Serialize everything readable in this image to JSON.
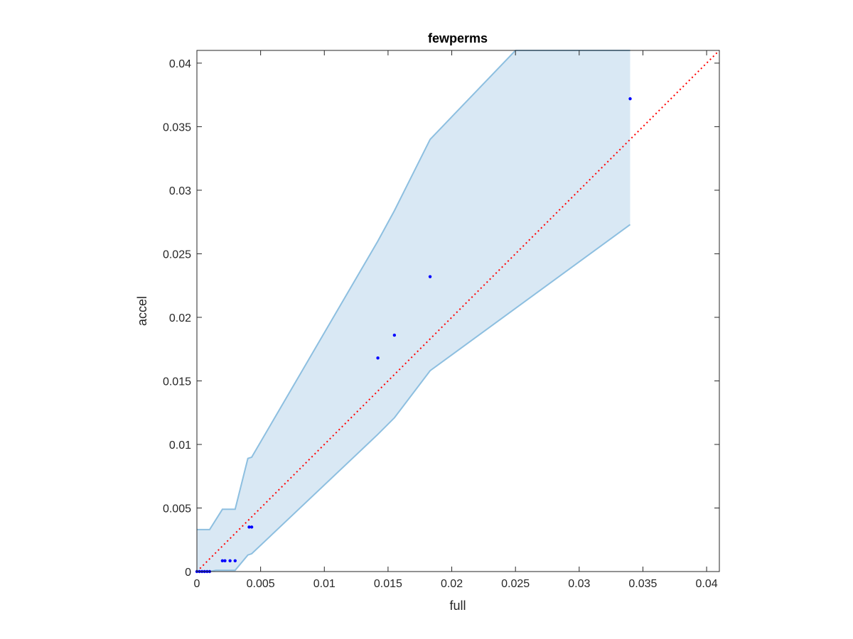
{
  "chart_data": {
    "type": "scatter",
    "title": "fewperms",
    "xlabel": "full",
    "ylabel": "accel",
    "xlim": [
      0,
      0.041
    ],
    "ylim": [
      0,
      0.041
    ],
    "xticks": [
      0,
      0.005,
      0.01,
      0.015,
      0.02,
      0.025,
      0.03,
      0.035,
      0.04
    ],
    "xtick_labels": [
      "0",
      "0.005",
      "0.01",
      "0.015",
      "0.02",
      "0.025",
      "0.03",
      "0.035",
      "0.04"
    ],
    "yticks": [
      0,
      0.005,
      0.01,
      0.015,
      0.02,
      0.025,
      0.03,
      0.035,
      0.04
    ],
    "ytick_labels": [
      "0",
      "0.005",
      "0.01",
      "0.015",
      "0.02",
      "0.025",
      "0.03",
      "0.035",
      "0.04"
    ],
    "grid": false,
    "colors": {
      "points": "#0000ff",
      "band_fill": "#d9e8f4",
      "band_edge": "#8dbfe0",
      "reference_line": "#ff0000",
      "axes": "#262626"
    },
    "points": [
      {
        "x": 0.0,
        "y": 0.0
      },
      {
        "x": 0.0002,
        "y": 0.0
      },
      {
        "x": 0.0004,
        "y": 0.0
      },
      {
        "x": 0.0006,
        "y": 0.0
      },
      {
        "x": 0.0008,
        "y": 0.0
      },
      {
        "x": 0.001,
        "y": 0.0
      },
      {
        "x": 0.002,
        "y": 0.00085
      },
      {
        "x": 0.0022,
        "y": 0.00085
      },
      {
        "x": 0.0026,
        "y": 0.00085
      },
      {
        "x": 0.003,
        "y": 0.00085
      },
      {
        "x": 0.0041,
        "y": 0.0035
      },
      {
        "x": 0.0043,
        "y": 0.0035
      },
      {
        "x": 0.0142,
        "y": 0.0168
      },
      {
        "x": 0.0155,
        "y": 0.0186
      },
      {
        "x": 0.0183,
        "y": 0.0232
      },
      {
        "x": 0.034,
        "y": 0.0372
      }
    ],
    "band_upper": [
      {
        "x": 0.0,
        "y": 0.0033
      },
      {
        "x": 0.001,
        "y": 0.0033
      },
      {
        "x": 0.002,
        "y": 0.0049
      },
      {
        "x": 0.003,
        "y": 0.0049
      },
      {
        "x": 0.004,
        "y": 0.0089
      },
      {
        "x": 0.0043,
        "y": 0.009
      },
      {
        "x": 0.0142,
        "y": 0.026
      },
      {
        "x": 0.0155,
        "y": 0.0284
      },
      {
        "x": 0.0183,
        "y": 0.034
      },
      {
        "x": 0.025,
        "y": 0.041
      },
      {
        "x": 0.034,
        "y": 0.041
      }
    ],
    "band_lower": [
      {
        "x": 0.0,
        "y": 0.0
      },
      {
        "x": 0.001,
        "y": 0.0
      },
      {
        "x": 0.0015,
        "y": 0.0001
      },
      {
        "x": 0.003,
        "y": 0.0001
      },
      {
        "x": 0.004,
        "y": 0.0013
      },
      {
        "x": 0.0043,
        "y": 0.0014
      },
      {
        "x": 0.0142,
        "y": 0.0108
      },
      {
        "x": 0.0155,
        "y": 0.0121
      },
      {
        "x": 0.0183,
        "y": 0.0158
      },
      {
        "x": 0.034,
        "y": 0.0273
      }
    ],
    "reference_line": {
      "style": "dotted",
      "from": [
        0,
        0
      ],
      "to": [
        0.041,
        0.041
      ]
    }
  }
}
